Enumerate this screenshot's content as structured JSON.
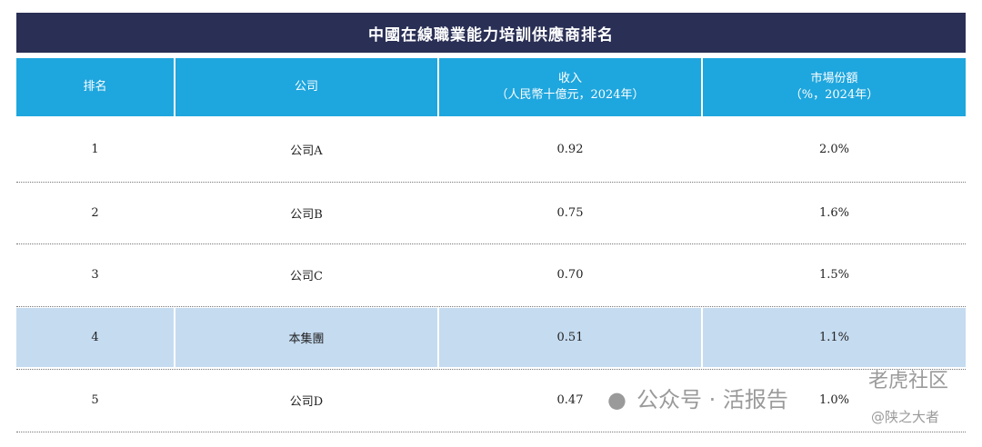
{
  "title": "中國在線職業能力培訓供應商排名",
  "headers": [
    {
      "line1": "排名",
      "line2": ""
    },
    {
      "line1": "公司",
      "line2": ""
    },
    {
      "line1": "收入",
      "line2": "（人民幣十億元，2024年）"
    },
    {
      "line1": "市場份額",
      "line2": "（%，2024年）"
    }
  ],
  "rows": [
    {
      "rank": "1",
      "company": "公司A",
      "revenue": "0.92",
      "share": "2.0%",
      "highlight": false
    },
    {
      "rank": "2",
      "company": "公司B",
      "revenue": "0.75",
      "share": "1.6%",
      "highlight": false
    },
    {
      "rank": "3",
      "company": "公司C",
      "revenue": "0.70",
      "share": "1.5%",
      "highlight": false
    },
    {
      "rank": "4",
      "company": "本集團",
      "revenue": "0.51",
      "share": "1.1%",
      "highlight": true
    },
    {
      "rank": "5",
      "company": "公司D",
      "revenue": "0.47",
      "share": "1.0%",
      "highlight": false
    }
  ],
  "colors": {
    "title_bg": "#2a2f55",
    "header_bg": "#1ea6de",
    "highlight_bg": "#c5dbf0"
  },
  "watermark": {
    "line1": "公众号 · 活报告",
    "line2": "老虎社区",
    "line3": "@陕之大者"
  }
}
